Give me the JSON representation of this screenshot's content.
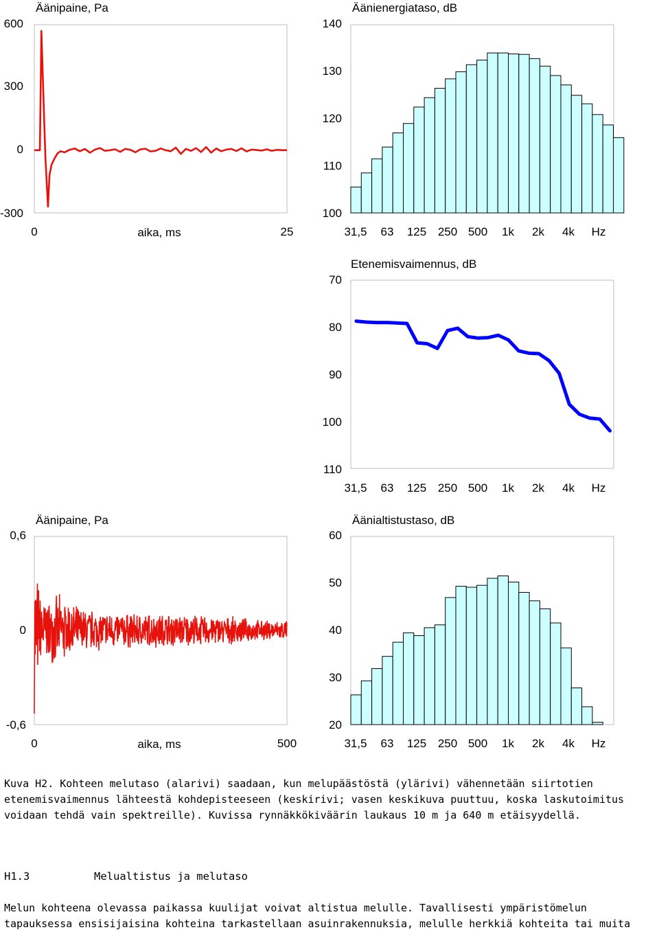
{
  "chart_data": [
    {
      "type": "line",
      "title": "Äänipaine, Pa",
      "xlabel": "aika, ms",
      "x_ticks": [
        "0",
        "25"
      ],
      "y_ticks": [
        "600",
        "300",
        "0",
        "-300"
      ],
      "xlim": [
        0,
        25
      ],
      "ylim": [
        -300,
        600
      ],
      "series": [
        {
          "x": [
            0,
            0.3,
            0.55,
            0.7,
            0.95,
            1.1,
            1.35,
            1.5,
            1.7,
            2.0,
            2.3,
            2.6,
            3.0,
            3.5,
            4.0,
            4.5,
            5.0,
            5.5,
            6.0,
            6.5,
            7.0,
            7.5,
            8.0,
            8.5,
            9.0,
            9.5,
            10.0,
            10.5,
            11.0,
            11.5,
            12.0,
            12.5,
            13.0,
            13.5,
            14.0,
            14.5,
            15.0,
            15.5,
            16.0,
            16.5,
            17.0,
            17.5,
            18.0,
            18.5,
            19.0,
            19.5,
            20.0,
            20.5,
            21.0,
            21.5,
            22.0,
            22.5,
            23.0,
            23.5,
            24.0,
            24.5,
            25.0
          ],
          "y": [
            0,
            0,
            0,
            570,
            180,
            -40,
            -270,
            -120,
            -70,
            -40,
            -15,
            -5,
            -10,
            2,
            8,
            -5,
            6,
            -12,
            3,
            10,
            -3,
            0,
            4,
            -8,
            6,
            2,
            -10,
            4,
            7,
            -6,
            -3,
            8,
            0,
            -5,
            12,
            -18,
            6,
            -3,
            10,
            -9,
            15,
            -12,
            8,
            -5,
            3,
            6,
            -4,
            9,
            -6,
            3,
            1,
            -2,
            4,
            -3,
            2,
            0,
            0
          ],
          "color": "#e8120c"
        }
      ]
    },
    {
      "type": "bar",
      "title": "Äänienergiataso, dB",
      "x_ticks": [
        "31,5",
        "63",
        "125",
        "250",
        "500",
        "1k",
        "2k",
        "4k",
        "Hz"
      ],
      "y_ticks": [
        "140",
        "130",
        "120",
        "110",
        "100"
      ],
      "ylim": [
        100,
        140
      ],
      "values": [
        105.5,
        108.5,
        111.5,
        114,
        117,
        119,
        122.5,
        124.5,
        126.5,
        128.5,
        130,
        131.5,
        132.5,
        134,
        134,
        133.8,
        133.7,
        132.8,
        131.2,
        129.2,
        127.2,
        125,
        123.2,
        120.9,
        118.7,
        116
      ],
      "color": "#ccffff"
    },
    {
      "type": "line",
      "title": "Etenemisvaimennus, dB",
      "x_ticks": [
        "31,5",
        "63",
        "125",
        "250",
        "500",
        "1k",
        "2k",
        "4k",
        "Hz"
      ],
      "y_ticks": [
        "70",
        "80",
        "90",
        "100",
        "110"
      ],
      "ylim": [
        70,
        110
      ],
      "y_inverted": true,
      "series": [
        {
          "values": [
            78.7,
            78.9,
            79,
            79,
            79.1,
            79.2,
            83.3,
            83.5,
            84.5,
            80.7,
            80.2,
            82,
            82.3,
            82.2,
            81.7,
            82.7,
            85,
            85.5,
            85.6,
            87.1,
            89.8,
            96.4,
            98.5,
            99.3,
            99.5,
            102
          ],
          "color": "#0000ff"
        }
      ]
    },
    {
      "type": "line",
      "title": "Äänipaine, Pa",
      "xlabel": "aika, ms",
      "x_ticks": [
        "0",
        "500"
      ],
      "y_ticks": [
        "0,6",
        "0",
        "-0,6"
      ],
      "xlim": [
        0,
        500
      ],
      "ylim": [
        -0.6,
        0.6
      ],
      "series": [
        {
          "envelope": [
            [
              0,
              0.55
            ],
            [
              10,
              0.28
            ],
            [
              25,
              0.2
            ],
            [
              50,
              0.24
            ],
            [
              75,
              0.18
            ],
            [
              100,
              0.15
            ],
            [
              150,
              0.13
            ],
            [
              200,
              0.12
            ],
            [
              250,
              0.12
            ],
            [
              300,
              0.11
            ],
            [
              350,
              0.1
            ],
            [
              400,
              0.09
            ],
            [
              450,
              0.07
            ],
            [
              500,
              0.07
            ]
          ],
          "color": "#e8120c"
        }
      ]
    },
    {
      "type": "bar",
      "title": "Äänialtistustaso, dB",
      "x_ticks": [
        "31,5",
        "63",
        "125",
        "250",
        "500",
        "1k",
        "2k",
        "4k",
        "Hz"
      ],
      "y_ticks": [
        "60",
        "50",
        "40",
        "30",
        "20"
      ],
      "ylim": [
        20,
        60
      ],
      "values": [
        26.3,
        29.3,
        31.9,
        34.5,
        37.5,
        39.5,
        38.9,
        40.6,
        41.2,
        47,
        49.4,
        49.2,
        49.6,
        51.1,
        51.6,
        50.3,
        48.1,
        46.3,
        44.6,
        41.6,
        36.3,
        27.8,
        23.8,
        20.5
      ],
      "color": "#ccffff"
    }
  ],
  "caption_lines": [
    "Kuva H2. Kohteen melutaso (alarivi) saadaan, kun melupäästöstä (ylärivi) vähennetään siirtotien",
    "etenemisvaimennus lähteestä kohdepisteeseen (keskirivi; vasen keskikuva puuttuu, koska laskutoimitus",
    "voidaan tehdä vain spektreille). Kuvissa rynnäkkökiväärin laukaus 10 m ja 640 m etäisyydellä."
  ],
  "section": {
    "number": "H1.3",
    "title": "Melualtistus ja melutaso"
  },
  "body_lines": [
    "Melun kohteena olevassa paikassa kuulijat voivat altistua melulle. Tavallisesti ympäristömelun",
    "tapauksessa ensisijaisina kohteina tarkastellaan asuinrakennuksia, melulle herkkiä kohteita tai muita"
  ]
}
